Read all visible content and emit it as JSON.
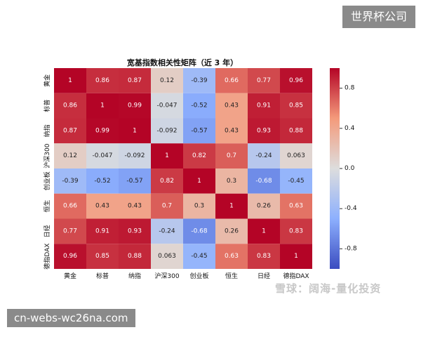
{
  "overlay": {
    "corner_badge": "世界杯公司",
    "url_badge": "cn-webs-wc26na.com",
    "watermark": "雪球：阔海-量化投资"
  },
  "chart_data": {
    "type": "heatmap",
    "title": "宽基指数相关性矩阵（近 3 年）",
    "xlabel": "",
    "ylabel": "",
    "labels": [
      "黄金",
      "标普",
      "纳指",
      "沪深300",
      "创业板",
      "恒生",
      "日经",
      "德指DAX"
    ],
    "matrix": [
      [
        1,
        0.86,
        0.87,
        0.12,
        -0.39,
        0.66,
        0.77,
        0.96
      ],
      [
        0.86,
        1,
        0.99,
        -0.047,
        -0.52,
        0.43,
        0.91,
        0.85
      ],
      [
        0.87,
        0.99,
        1,
        -0.092,
        -0.57,
        0.43,
        0.93,
        0.88
      ],
      [
        0.12,
        -0.047,
        -0.092,
        1,
        0.82,
        0.7,
        -0.24,
        0.063
      ],
      [
        -0.39,
        -0.52,
        -0.57,
        0.82,
        1,
        0.3,
        -0.68,
        -0.45
      ],
      [
        0.66,
        0.43,
        0.43,
        0.7,
        0.3,
        1,
        0.26,
        0.63
      ],
      [
        0.77,
        0.91,
        0.93,
        -0.24,
        -0.68,
        0.26,
        1,
        0.83
      ],
      [
        0.96,
        0.85,
        0.88,
        0.063,
        -0.45,
        0.63,
        0.83,
        1
      ]
    ],
    "cell_labels": [
      [
        "1",
        "0.86",
        "0.87",
        "0.12",
        "-0.39",
        "0.66",
        "0.77",
        "0.96"
      ],
      [
        "0.86",
        "1",
        "0.99",
        "-0.047",
        "-0.52",
        "0.43",
        "0.91",
        "0.85"
      ],
      [
        "0.87",
        "0.99",
        "1",
        "-0.092",
        "-0.57",
        "0.43",
        "0.93",
        "0.88"
      ],
      [
        "0.12",
        "-0.047",
        "-0.092",
        "1",
        "0.82",
        "0.7",
        "-0.24",
        "0.063"
      ],
      [
        "-0.39",
        "-0.52",
        "-0.57",
        "0.82",
        "1",
        "0.3",
        "-0.68",
        "-0.45"
      ],
      [
        "0.66",
        "0.43",
        "0.43",
        "0.7",
        "0.3",
        "1",
        "0.26",
        "0.63"
      ],
      [
        "0.77",
        "0.91",
        "0.93",
        "-0.24",
        "-0.68",
        "0.26",
        "1",
        "0.83"
      ],
      [
        "0.96",
        "0.85",
        "0.88",
        "0.063",
        "-0.45",
        "0.63",
        "0.83",
        "1"
      ]
    ],
    "colorbar": {
      "range": [
        -1,
        1
      ],
      "ticks": [
        0.8,
        0.4,
        0.0,
        -0.4,
        -0.8
      ],
      "tick_labels": [
        "0.8",
        "0.4",
        "0.0",
        "-0.4",
        "-0.8"
      ],
      "colormap": "coolwarm"
    }
  }
}
